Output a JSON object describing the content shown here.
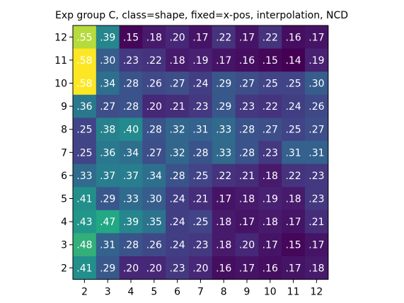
{
  "chart_data": {
    "type": "heatmap",
    "title": "Exp group C, class=shape, fixed=x-pos, interpolation, NCD",
    "xlabel": "",
    "ylabel": "",
    "x_categories": [
      "2",
      "3",
      "4",
      "5",
      "6",
      "7",
      "8",
      "9",
      "10",
      "11",
      "12"
    ],
    "y_categories": [
      "12",
      "11",
      "10",
      "9",
      "8",
      "7",
      "6",
      "5",
      "4",
      "3",
      "2"
    ],
    "colormap": "viridis",
    "vrange": [
      0.14,
      0.58
    ],
    "values": [
      [
        0.55,
        0.39,
        0.15,
        0.18,
        0.2,
        0.17,
        0.22,
        0.17,
        0.22,
        0.16,
        0.17
      ],
      [
        0.58,
        0.3,
        0.23,
        0.22,
        0.18,
        0.19,
        0.17,
        0.16,
        0.15,
        0.14,
        0.19
      ],
      [
        0.58,
        0.34,
        0.28,
        0.26,
        0.27,
        0.24,
        0.29,
        0.27,
        0.25,
        0.25,
        0.3
      ],
      [
        0.36,
        0.27,
        0.28,
        0.2,
        0.21,
        0.23,
        0.29,
        0.23,
        0.22,
        0.24,
        0.26
      ],
      [
        0.25,
        0.38,
        0.4,
        0.28,
        0.32,
        0.31,
        0.33,
        0.28,
        0.27,
        0.25,
        0.27
      ],
      [
        0.25,
        0.36,
        0.34,
        0.27,
        0.32,
        0.28,
        0.33,
        0.28,
        0.23,
        0.31,
        0.31
      ],
      [
        0.33,
        0.37,
        0.37,
        0.34,
        0.28,
        0.25,
        0.22,
        0.21,
        0.18,
        0.22,
        0.23
      ],
      [
        0.41,
        0.29,
        0.33,
        0.3,
        0.24,
        0.21,
        0.17,
        0.18,
        0.19,
        0.18,
        0.23
      ],
      [
        0.43,
        0.47,
        0.39,
        0.35,
        0.24,
        0.25,
        0.18,
        0.17,
        0.18,
        0.17,
        0.21
      ],
      [
        0.48,
        0.31,
        0.28,
        0.26,
        0.24,
        0.23,
        0.18,
        0.2,
        0.17,
        0.15,
        0.17
      ],
      [
        0.41,
        0.29,
        0.2,
        0.2,
        0.23,
        0.2,
        0.16,
        0.17,
        0.16,
        0.17,
        0.18
      ]
    ],
    "cell_labels": [
      [
        ".55",
        ".39",
        ".15",
        ".18",
        ".20",
        ".17",
        ".22",
        ".17",
        ".22",
        ".16",
        ".17"
      ],
      [
        ".58",
        ".30",
        ".23",
        ".22",
        ".18",
        ".19",
        ".17",
        ".16",
        ".15",
        ".14",
        ".19"
      ],
      [
        ".58",
        ".34",
        ".28",
        ".26",
        ".27",
        ".24",
        ".29",
        ".27",
        ".25",
        ".25",
        ".30"
      ],
      [
        ".36",
        ".27",
        ".28",
        ".20",
        ".21",
        ".23",
        ".29",
        ".23",
        ".22",
        ".24",
        ".26"
      ],
      [
        ".25",
        ".38",
        ".40",
        ".28",
        ".32",
        ".31",
        ".33",
        ".28",
        ".27",
        ".25",
        ".27"
      ],
      [
        ".25",
        ".36",
        ".34",
        ".27",
        ".32",
        ".28",
        ".33",
        ".28",
        ".23",
        ".31",
        ".31"
      ],
      [
        ".33",
        ".37",
        ".37",
        ".34",
        ".28",
        ".25",
        ".22",
        ".21",
        ".18",
        ".22",
        ".23"
      ],
      [
        ".41",
        ".29",
        ".33",
        ".30",
        ".24",
        ".21",
        ".17",
        ".18",
        ".19",
        ".18",
        ".23"
      ],
      [
        ".43",
        ".47",
        ".39",
        ".35",
        ".24",
        ".25",
        ".18",
        ".17",
        ".18",
        ".17",
        ".21"
      ],
      [
        ".48",
        ".31",
        ".28",
        ".26",
        ".24",
        ".23",
        ".18",
        ".20",
        ".17",
        ".15",
        ".17"
      ],
      [
        ".41",
        ".29",
        ".20",
        ".20",
        ".23",
        ".20",
        ".16",
        ".17",
        ".16",
        ".17",
        ".18"
      ]
    ],
    "grid": false,
    "colorbar": false,
    "label_color": "#ffffff"
  }
}
